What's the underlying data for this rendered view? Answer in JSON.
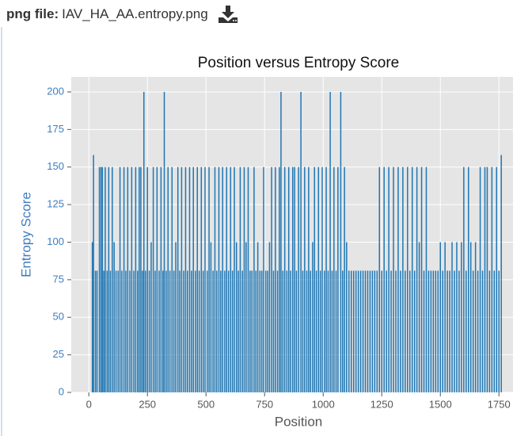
{
  "header": {
    "label": "png file:",
    "filename": "IAV_HA_AA.entropy.png"
  },
  "chart_data": {
    "type": "bar",
    "title": "Position versus Entropy Score",
    "x_label": "Position",
    "y_label": "Entropy Score",
    "color": "#1f77b4",
    "grid": true,
    "xlim": [
      -75,
      1810
    ],
    "ylim": [
      0,
      210
    ],
    "xticks": [
      0,
      250,
      500,
      750,
      1000,
      1250,
      1500,
      1750
    ],
    "yticks": [
      0,
      25,
      50,
      75,
      100,
      125,
      150,
      175,
      200
    ],
    "x": [
      15,
      20,
      28,
      35,
      45,
      52,
      58,
      64,
      70,
      78,
      85,
      92,
      100,
      108,
      116,
      125,
      133,
      141,
      150,
      158,
      166,
      175,
      183,
      192,
      200,
      208,
      215,
      222,
      229,
      235,
      242,
      250,
      258,
      266,
      275,
      283,
      291,
      300,
      308,
      316,
      322,
      330,
      338,
      346,
      355,
      363,
      371,
      380,
      388,
      396,
      405,
      413,
      421,
      430,
      438,
      446,
      455,
      463,
      471,
      480,
      488,
      496,
      505,
      513,
      521,
      530,
      538,
      546,
      555,
      563,
      571,
      580,
      588,
      596,
      605,
      613,
      621,
      630,
      638,
      646,
      655,
      663,
      671,
      680,
      688,
      696,
      705,
      713,
      721,
      730,
      738,
      746,
      755,
      763,
      771,
      780,
      788,
      796,
      805,
      813,
      820,
      828,
      836,
      845,
      853,
      861,
      870,
      878,
      886,
      895,
      905,
      913,
      921,
      930,
      938,
      946,
      955,
      963,
      971,
      980,
      988,
      996,
      1005,
      1013,
      1021,
      1030,
      1038,
      1046,
      1055,
      1063,
      1075,
      1083,
      1091,
      1100,
      1110,
      1120,
      1130,
      1140,
      1150,
      1160,
      1170,
      1180,
      1190,
      1200,
      1210,
      1220,
      1230,
      1240,
      1250,
      1260,
      1270,
      1280,
      1290,
      1300,
      1310,
      1320,
      1330,
      1340,
      1350,
      1360,
      1370,
      1380,
      1390,
      1400,
      1410,
      1420,
      1430,
      1440,
      1450,
      1460,
      1470,
      1480,
      1490,
      1500,
      1510,
      1520,
      1530,
      1540,
      1550,
      1560,
      1570,
      1580,
      1590,
      1600,
      1610,
      1620,
      1630,
      1640,
      1650,
      1660,
      1670,
      1680,
      1690,
      1700,
      1710,
      1720,
      1730,
      1740,
      1750,
      1760
    ],
    "values": [
      100,
      158,
      81,
      81,
      150,
      150,
      150,
      81,
      150,
      81,
      150,
      81,
      150,
      100,
      81,
      81,
      150,
      81,
      150,
      81,
      150,
      81,
      150,
      81,
      150,
      81,
      150,
      150,
      81,
      200,
      81,
      150,
      81,
      100,
      150,
      81,
      150,
      81,
      150,
      81,
      200,
      81,
      150,
      81,
      150,
      81,
      100,
      150,
      81,
      150,
      81,
      150,
      81,
      150,
      81,
      150,
      81,
      150,
      81,
      150,
      81,
      150,
      81,
      150,
      100,
      81,
      150,
      81,
      150,
      81,
      150,
      81,
      150,
      81,
      150,
      81,
      150,
      100,
      81,
      150,
      81,
      150,
      100,
      150,
      81,
      81,
      150,
      81,
      100,
      81,
      81,
      150,
      81,
      81,
      100,
      150,
      81,
      150,
      81,
      150,
      200,
      81,
      150,
      81,
      150,
      81,
      150,
      150,
      81,
      150,
      200,
      81,
      150,
      81,
      150,
      81,
      100,
      150,
      81,
      150,
      81,
      150,
      81,
      150,
      81,
      200,
      81,
      150,
      81,
      150,
      200,
      81,
      150,
      100,
      81,
      81,
      81,
      81,
      81,
      81,
      81,
      81,
      81,
      81,
      81,
      81,
      81,
      150,
      81,
      150,
      81,
      150,
      81,
      150,
      81,
      150,
      81,
      150,
      81,
      150,
      81,
      150,
      81,
      150,
      100,
      150,
      81,
      150,
      81,
      81,
      81,
      81,
      81,
      100,
      81,
      100,
      81,
      81,
      100,
      81,
      100,
      81,
      100,
      150,
      81,
      150,
      100,
      81,
      100,
      81,
      150,
      81,
      150,
      150,
      81,
      150,
      81,
      150,
      81,
      158
    ]
  }
}
